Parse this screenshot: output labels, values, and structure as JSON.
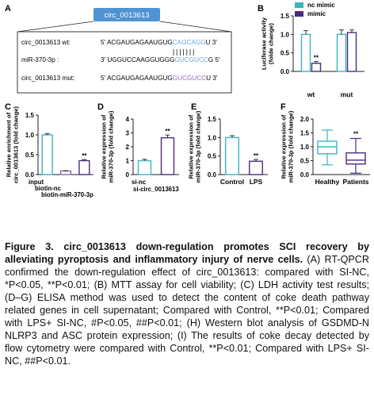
{
  "panel_a": {
    "letter": "A",
    "gene_label": "circ_0013613",
    "rows": [
      {
        "name": "circ_0013613",
        "tag": "wt:",
        "prefix": "5' ACGAUGAGAAUGUG",
        "site": "CAGCAGG",
        "suffix": "U 3'",
        "site_color": "#6aa8d6"
      },
      {
        "name": "miR-370-3p",
        "tag": ":",
        "prefix": "3' UGGUCCAAGGUGGG",
        "site": "GUCGUCC",
        "suffix": "G 5'",
        "site_color": "#6aa8d6"
      },
      {
        "name": "circ_0013613 mut:",
        "tag": "",
        "prefix": "5' ACGAUGAGAAUGUG",
        "site": "GUCGUCC",
        "suffix": "U 3'",
        "site_color": "#8b6fb6"
      }
    ]
  },
  "caption": {
    "title": "Figure 3. circ_0013613 down-regulation promotes SCI recovery by alleviating pyroptosis and inflammatory injury of nerve cells.",
    "body": "(A) RT-QPCR confirmed the down-regulation effect of circ_0013613: compared with SI-NC, *P<0.05, **P<0.01; (B) MTT assay for cell viability; (C) LDH activity test results; (D–G) ELISA method was used to detect the content of coke death pathway related genes in cell supernatant; Compared with Control, **P<0.01; Compared with LPS+ SI-NC, #P<0.05, ##P<0.01; (H) Western blot analysis of GSDMD-N NLRP3 and ASC protein expression; (I) The results of coke decay detected by flow cytometry were compared with Control, **P<0.01; Compared with LPS+ SI-NC, ##P<0.01."
  },
  "colors": {
    "accent": "#3ab6c0",
    "dark": "#4b2a82",
    "mid": "#7d6bb3",
    "light": "#e4e0ef"
  },
  "chart_data": [
    {
      "id": "B",
      "type": "bar",
      "categories": [
        "wt",
        "mut"
      ],
      "series": [
        {
          "name": "nc mimic",
          "values": [
            1.0,
            1.0
          ],
          "errors": [
            0.1,
            0.12
          ],
          "color": "#3ab6c0"
        },
        {
          "name": "mimic",
          "values": [
            0.22,
            1.05
          ],
          "errors": [
            0.05,
            0.07
          ],
          "color": "#4b2a82"
        }
      ],
      "ylabel": "Luciferase activity\n(folde change)",
      "ylim": [
        0.0,
        1.5
      ],
      "yticks": [
        "0.0",
        "0.5",
        "1.0",
        "1.5"
      ],
      "legend": "top",
      "annotations": [
        "**"
      ]
    },
    {
      "id": "C",
      "type": "bar",
      "categories": [
        "input",
        "biotin-nc",
        "biotin-miR-370-3p"
      ],
      "values": [
        1.0,
        0.09,
        0.35
      ],
      "errors": [
        0.03,
        0.01,
        0.03
      ],
      "colors": [
        "#3ab6c0",
        "#7d6bb3",
        "#4b2a82"
      ],
      "ylabel": "Relative enrichment of\ncirc_0013613 (fold change)",
      "ylim": [
        0.0,
        1.5
      ],
      "yticks": [
        "0.0",
        "0.5",
        "1.0",
        "1.5"
      ],
      "annotations": [
        "**"
      ]
    },
    {
      "id": "D",
      "type": "bar",
      "categories": [
        "si-nc",
        "si-circ_0013613"
      ],
      "values": [
        1.0,
        2.65
      ],
      "errors": [
        0.1,
        0.2
      ],
      "colors": [
        "#3ab6c0",
        "#4b2a82"
      ],
      "ylabel": "Relative expression of\nmiR-370-3p (fold change)",
      "ylim": [
        0,
        4
      ],
      "yticks": [
        "0",
        "1",
        "2",
        "3",
        "4"
      ],
      "annotations": [
        "**"
      ]
    },
    {
      "id": "E",
      "type": "bar",
      "categories": [
        "Control",
        "LPS"
      ],
      "values": [
        1.0,
        0.36
      ],
      "errors": [
        0.05,
        0.05
      ],
      "colors": [
        "#3ab6c0",
        "#4b2a82"
      ],
      "ylabel": "Relative expression of\nmiR-370-3p (fold change)",
      "ylim": [
        0.0,
        1.5
      ],
      "yticks": [
        "0.0",
        "0.5",
        "1.0",
        "1.5"
      ],
      "annotations": [
        "**"
      ]
    },
    {
      "id": "F",
      "type": "box",
      "categories": [
        "Healthy",
        "Patients"
      ],
      "boxes": [
        {
          "min": 0.35,
          "q1": 0.75,
          "median": 1.0,
          "q3": 1.2,
          "max": 1.6,
          "color": "#3ab6c0"
        },
        {
          "min": 0.05,
          "q1": 0.38,
          "median": 0.52,
          "q3": 0.78,
          "max": 1.3,
          "color": "#4b2a82"
        }
      ],
      "ylabel": "Relative expression of\nmiR-370-3p (fold change)",
      "ylim": [
        0.0,
        2.0
      ],
      "yticks": [
        "0.0",
        "0.5",
        "1.0",
        "1.5",
        "2.0"
      ],
      "annotations": [
        "**"
      ]
    }
  ]
}
